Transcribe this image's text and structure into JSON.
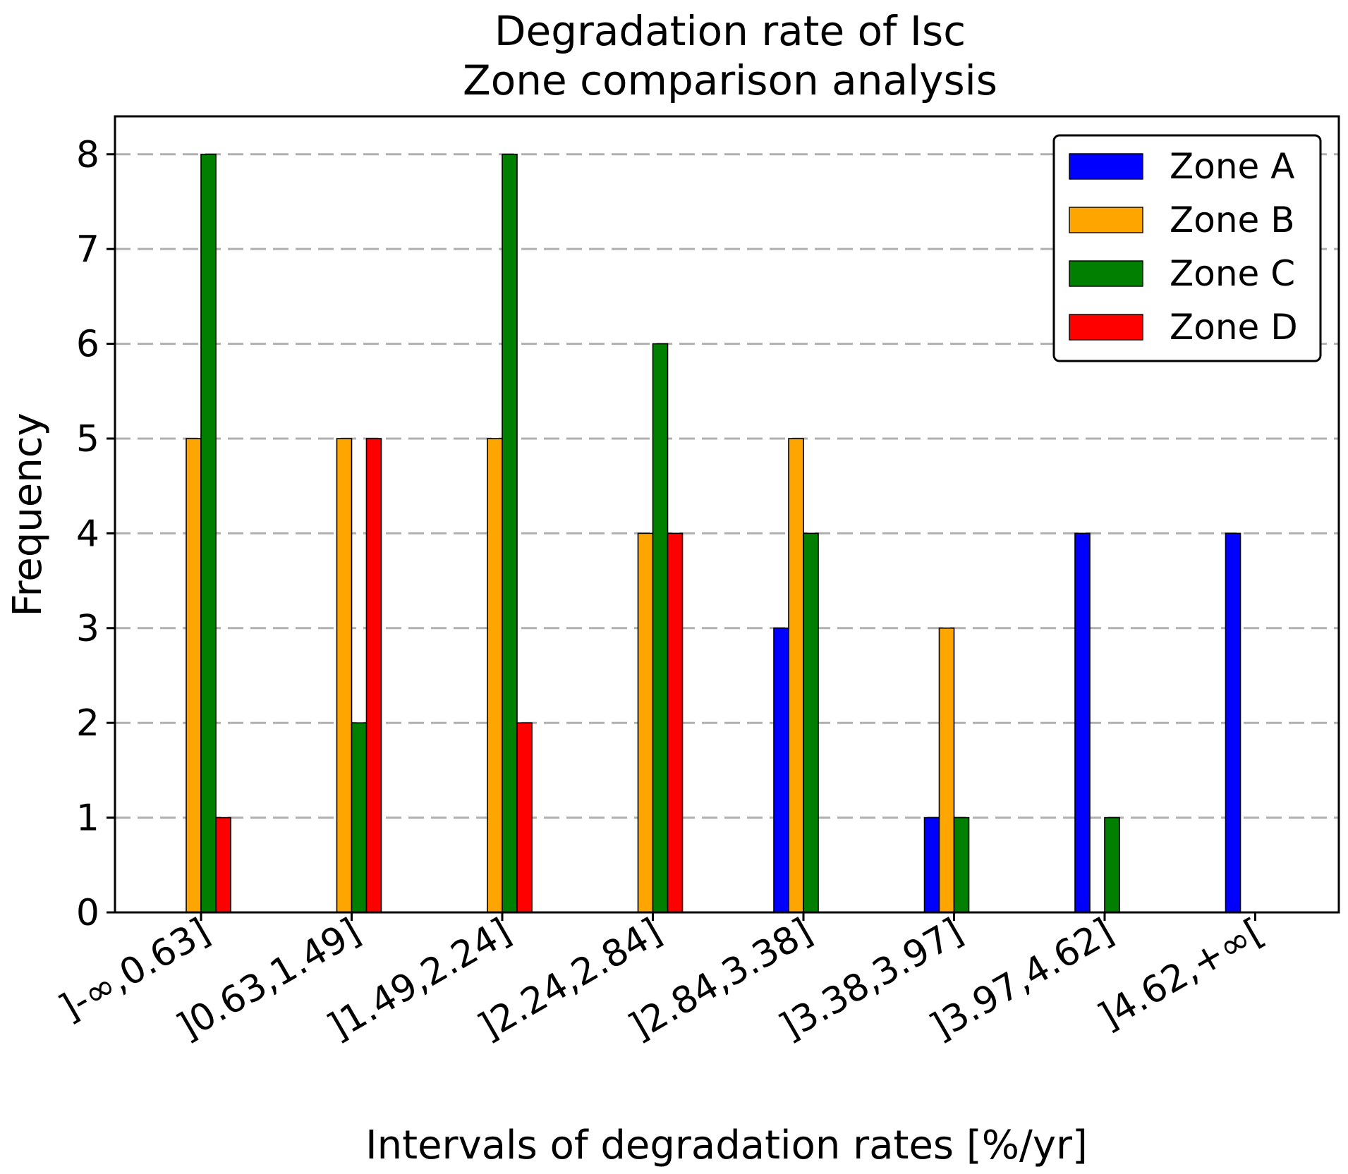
{
  "chart_data": {
    "type": "bar",
    "title": "Degradation rate of Isc",
    "subtitle": "Zone comparison analysis",
    "xlabel": "Intervals of degradation rates [%/yr]",
    "ylabel": "Frequency",
    "ylim": [
      0,
      8.4
    ],
    "yticks": [
      0,
      1,
      2,
      3,
      4,
      5,
      6,
      7,
      8
    ],
    "grid": "horizontal dashed",
    "legend_position": "top-right",
    "categories": [
      "]-∞,0.63]",
      "]0.63,1.49]",
      "]1.49,2.24]",
      "]2.24,2.84]",
      "]2.84,3.38]",
      "]3.38,3.97]",
      "]3.97,4.62]",
      "]4.62,+∞["
    ],
    "series": [
      {
        "name": "Zone A",
        "color": "#0000ff",
        "values": [
          0,
          0,
          0,
          0,
          3,
          1,
          4,
          4
        ]
      },
      {
        "name": "Zone B",
        "color": "#ffa500",
        "values": [
          5,
          5,
          5,
          4,
          5,
          3,
          0,
          0
        ]
      },
      {
        "name": "Zone C",
        "color": "#007f00",
        "values": [
          8,
          2,
          8,
          6,
          4,
          1,
          1,
          0
        ]
      },
      {
        "name": "Zone D",
        "color": "#ff0000",
        "values": [
          1,
          5,
          2,
          4,
          0,
          0,
          0,
          0
        ]
      }
    ]
  }
}
